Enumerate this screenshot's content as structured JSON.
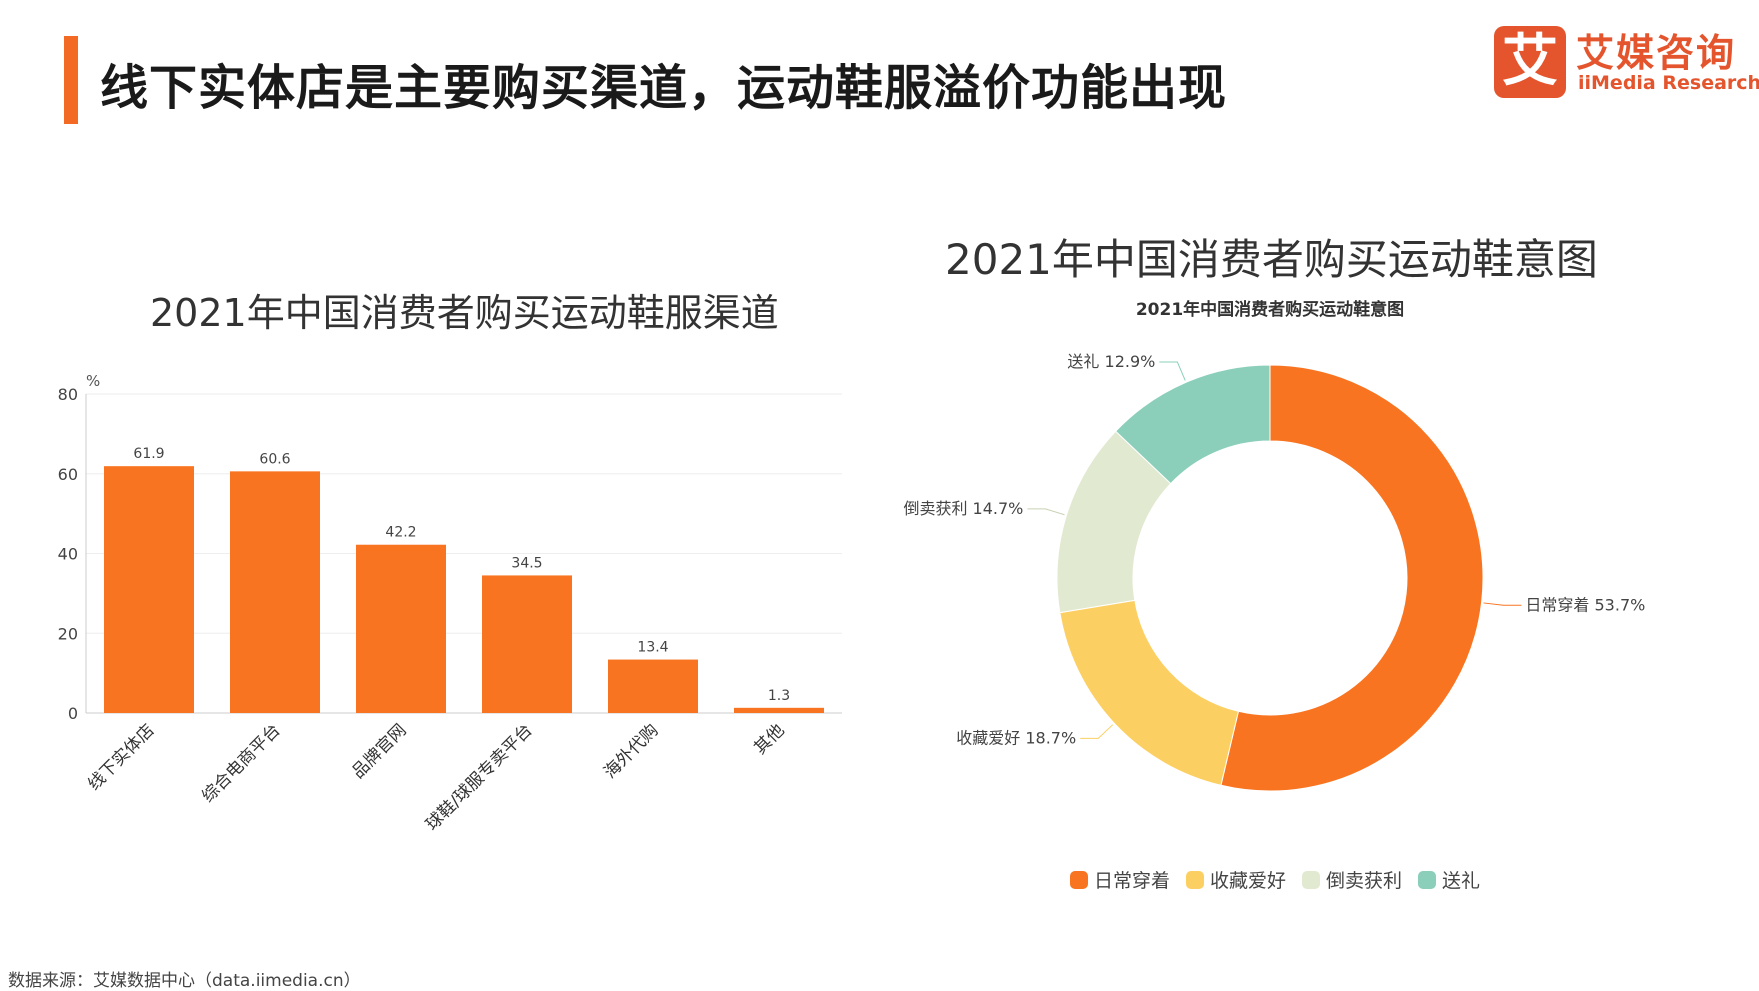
{
  "page_title": "线下实体店是主要购买渠道，运动鞋服溢价功能出现",
  "logo": {
    "cn": "艾媒咨询",
    "en": "iiMedia Research",
    "mark": "艾"
  },
  "source": "数据来源：艾媒数据中心（data.iimedia.cn）",
  "chart_data": [
    {
      "type": "bar",
      "title": "2021年中国消费者购买运动鞋服渠道",
      "ylabel": "%",
      "ylim": [
        0,
        80
      ],
      "yticks": [
        0,
        20,
        40,
        60,
        80
      ],
      "categories": [
        "线下实体店",
        "综合电商平台",
        "品牌官网",
        "球鞋/球服专卖平台",
        "海外代购",
        "其他"
      ],
      "values": [
        61.9,
        60.6,
        42.2,
        34.5,
        13.4,
        1.3
      ],
      "value_labels": [
        "61.9",
        "60.6",
        "42.2",
        "34.5",
        "13.4",
        "1.3"
      ],
      "color": "#f97420",
      "grid": true
    },
    {
      "type": "pie",
      "variant": "donut",
      "title": "2021年中国消费者购买运动鞋意图",
      "subtitle": "2021年中国消费者购买运动鞋意图",
      "labels": [
        "日常穿着",
        "收藏爱好",
        "倒卖获利",
        "送礼"
      ],
      "values": [
        53.7,
        18.7,
        14.7,
        12.9
      ],
      "value_labels": [
        "日常穿着 53.7%",
        "收藏爱好 18.7%",
        "倒卖获利 14.7%",
        "送礼 12.9%"
      ],
      "colors": [
        "#f97420",
        "#fccf62",
        "#e1e9d1",
        "#8bcfba"
      ],
      "legend_position": "bottom"
    }
  ]
}
